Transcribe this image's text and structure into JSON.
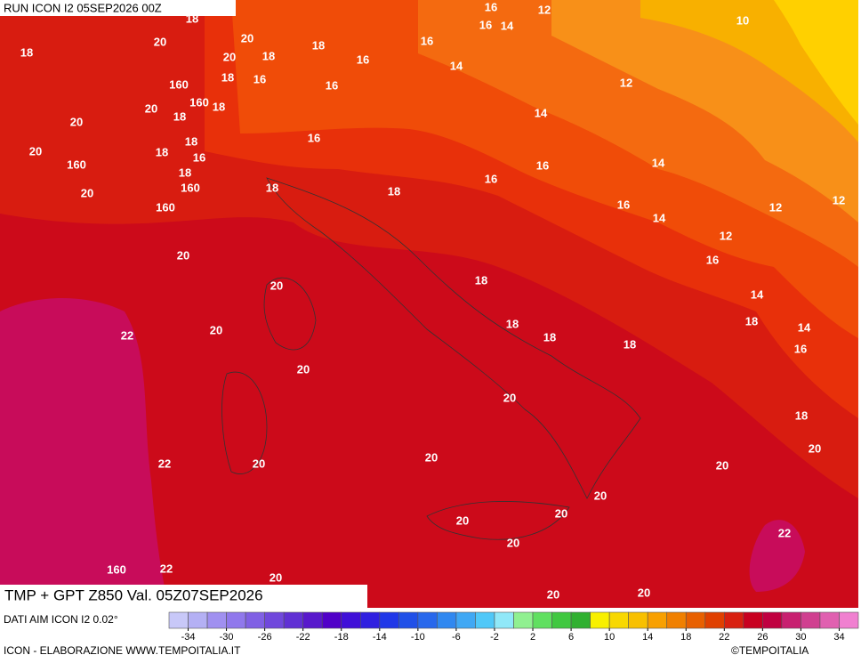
{
  "header": {
    "run": "RUN ICON I2 05SEP2026 00Z"
  },
  "map": {
    "title": "TMP + GPT Z850 Val. 05Z07SEP2026",
    "contour_labels": [
      18,
      20,
      18,
      20,
      20,
      18,
      18,
      16,
      18,
      16,
      16,
      160,
      160,
      20,
      18,
      18,
      20,
      18,
      20,
      18,
      16,
      160,
      18,
      160,
      20,
      160,
      16,
      12,
      16,
      14,
      10,
      16,
      14,
      12,
      14,
      16,
      14,
      16,
      16,
      18,
      18,
      16,
      14,
      12,
      12,
      12,
      16,
      20,
      18,
      20,
      14,
      18,
      18,
      18,
      18,
      14,
      22,
      20,
      16,
      20,
      20,
      18,
      20,
      20,
      22,
      20,
      20,
      20,
      20,
      20,
      20,
      22,
      160,
      22,
      20,
      20,
      20
    ]
  },
  "colorbar": {
    "source": "DATI AIM ICON I2 0.02°",
    "lim": [
      -36,
      36
    ],
    "colors": [
      "#c8c8f8",
      "#b4b0f4",
      "#a090f0",
      "#9078ec",
      "#8060e4",
      "#7048dc",
      "#6030d4",
      "#5818cc",
      "#5000c8",
      "#4010d8",
      "#3020e0",
      "#2038e8",
      "#2050e8",
      "#2868ec",
      "#3088f0",
      "#40a8f4",
      "#50c8f8",
      "#90e8f8",
      "#90f090",
      "#60e060",
      "#40c840",
      "#30b030",
      "#f8f000",
      "#f8d800",
      "#f8c000",
      "#f8a000",
      "#f08000",
      "#e86000",
      "#e04000",
      "#d82010",
      "#c80020",
      "#c00040",
      "#c82070",
      "#d04090",
      "#e060b0",
      "#f080d0"
    ],
    "ticks": [
      -34,
      -30,
      -26,
      -22,
      -18,
      -14,
      -10,
      -6,
      -2,
      2,
      6,
      10,
      14,
      18,
      22,
      26,
      30,
      34
    ]
  },
  "footer": {
    "credit": "ICON - ELABORAZIONE WWW.TEMPOITALIA.IT",
    "copyright": "©TEMPOITALIA"
  }
}
